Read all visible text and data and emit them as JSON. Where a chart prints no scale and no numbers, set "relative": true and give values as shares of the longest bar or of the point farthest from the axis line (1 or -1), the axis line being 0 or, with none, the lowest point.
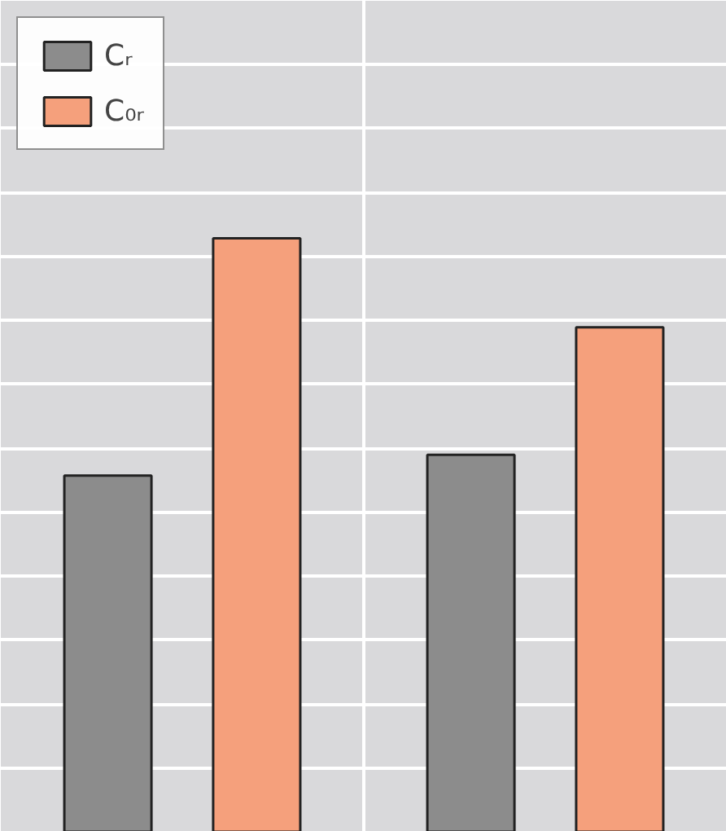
{
  "chart_data": {
    "type": "bar",
    "relative": true,
    "categories": [
      null,
      null
    ],
    "series": [
      {
        "name": "Cᵣ",
        "color": "#8c8c8c",
        "values": [
          0.6,
          0.635
        ]
      },
      {
        "name": "C₀ᵣ",
        "color": "#f5a07c",
        "values": [
          1,
          0.85
        ]
      }
    ],
    "grid": true,
    "legend": "top left"
  }
}
